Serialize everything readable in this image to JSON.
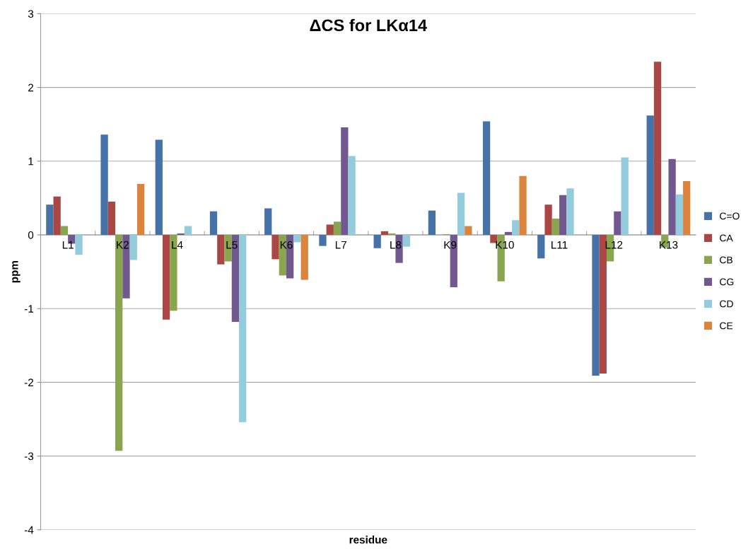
{
  "chart_data": {
    "type": "bar",
    "title": "ΔCS for LKα14",
    "xlabel": "residue",
    "ylabel": "ppm",
    "categories": [
      "L1",
      "K2",
      "L4",
      "L5",
      "K6",
      "L7",
      "L8",
      "K9",
      "K10",
      "L11",
      "L12",
      "K13"
    ],
    "series": [
      {
        "name": "C=O",
        "color": "#4572a7",
        "values": [
          0.41,
          1.36,
          1.29,
          0.32,
          0.36,
          -0.15,
          -0.18,
          0.33,
          1.54,
          -0.32,
          -1.91,
          1.62
        ]
      },
      {
        "name": "CA",
        "color": "#aa4643",
        "values": [
          0.52,
          0.45,
          -1.15,
          -0.4,
          -0.33,
          0.14,
          0.05,
          null,
          -0.11,
          0.41,
          -1.88,
          2.35
        ]
      },
      {
        "name": "CB",
        "color": "#89a54e",
        "values": [
          0.12,
          -2.93,
          -1.03,
          -0.36,
          -0.55,
          0.18,
          0.02,
          0.01,
          -0.63,
          0.22,
          -0.36,
          -0.17
        ]
      },
      {
        "name": "CG",
        "color": "#71588f",
        "values": [
          -0.12,
          -0.86,
          0.02,
          -1.18,
          -0.59,
          1.46,
          -0.38,
          -0.71,
          0.04,
          0.54,
          0.32,
          1.03
        ]
      },
      {
        "name": "CD",
        "color": "#93cddd",
        "values": [
          -0.27,
          -0.34,
          0.12,
          -2.54,
          -0.1,
          1.07,
          -0.16,
          0.57,
          0.2,
          0.63,
          1.05,
          0.55
        ]
      },
      {
        "name": "CE",
        "color": "#db843d",
        "values": [
          null,
          0.69,
          null,
          null,
          -0.61,
          null,
          null,
          0.12,
          0.8,
          null,
          null,
          0.73
        ]
      }
    ],
    "ylim": [
      -4,
      3
    ],
    "yticks": [
      -4,
      -3,
      -2,
      -1,
      0,
      1,
      2,
      3
    ],
    "grid": "y",
    "legend": "right"
  }
}
